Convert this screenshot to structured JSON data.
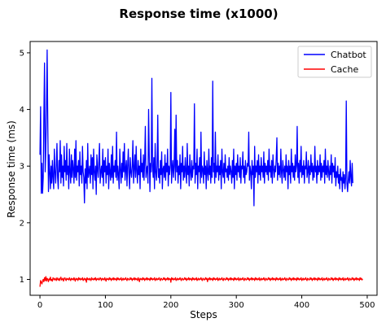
{
  "chart_data": {
    "type": "line",
    "title": "Response time (x1000)",
    "xlabel": "Steps",
    "ylabel": "Response time (ms)",
    "xlim": [
      -15,
      515
    ],
    "ylim": [
      0.72,
      5.2
    ],
    "xticks": [
      0,
      100,
      200,
      300,
      400,
      500
    ],
    "yticks": [
      1,
      2,
      3,
      4,
      5
    ],
    "grid": false,
    "legend_position": "upper right",
    "colors": {
      "Chatbot": "#0000ff",
      "Cache": "#ff0000"
    },
    "series": [
      {
        "name": "Chatbot",
        "x_start": 0,
        "x_step": 1,
        "values": [
          3.2,
          4.05,
          2.52,
          3.05,
          2.52,
          2.8,
          3.9,
          4.82,
          2.9,
          3.3,
          4.0,
          5.05,
          3.7,
          2.55,
          3.2,
          2.9,
          2.6,
          3.0,
          2.7,
          3.1,
          2.8,
          2.6,
          3.3,
          2.9,
          2.7,
          3.0,
          3.4,
          2.8,
          2.6,
          3.1,
          2.9,
          3.45,
          2.7,
          3.2,
          2.8,
          3.0,
          2.65,
          3.35,
          2.9,
          3.1,
          2.75,
          3.4,
          2.85,
          3.0,
          2.6,
          3.3,
          2.9,
          2.7,
          3.2,
          2.8,
          3.1,
          2.95,
          2.7,
          3.3,
          2.8,
          3.45,
          2.75,
          3.0,
          2.9,
          3.1,
          2.65,
          3.25,
          2.85,
          3.0,
          2.7,
          3.35,
          2.9,
          2.8,
          2.35,
          2.95,
          2.7,
          3.1,
          2.6,
          3.4,
          2.8,
          2.9,
          3.0,
          2.7,
          3.2,
          2.85,
          3.15,
          2.6,
          3.3,
          2.9,
          2.75,
          3.0,
          2.5,
          3.2,
          2.95,
          2.8,
          3.1,
          3.4,
          2.7,
          2.9,
          3.0,
          2.8,
          3.3,
          2.65,
          3.1,
          2.9,
          3.15,
          2.7,
          3.0,
          2.85,
          3.3,
          2.6,
          3.05,
          2.9,
          2.75,
          3.2,
          2.8,
          3.35,
          2.7,
          3.0,
          2.9,
          3.1,
          2.8,
          3.6,
          2.75,
          3.0,
          2.85,
          2.6,
          3.3,
          2.95,
          2.7,
          3.05,
          2.8,
          3.25,
          2.9,
          3.4,
          2.75,
          2.95,
          3.1,
          2.65,
          3.0,
          3.3,
          2.85,
          2.6,
          3.15,
          2.9,
          2.8,
          3.0,
          3.45,
          2.7,
          2.95,
          3.2,
          2.8,
          3.35,
          2.9,
          2.7,
          3.1,
          2.85,
          3.0,
          2.6,
          3.3,
          2.9,
          3.05,
          2.8,
          3.2,
          2.75,
          3.1,
          3.7,
          2.8,
          2.95,
          3.0,
          2.7,
          4.0,
          3.2,
          2.55,
          3.05,
          2.9,
          4.55,
          3.0,
          2.8,
          3.15,
          2.6,
          3.4,
          2.9,
          2.75,
          3.0,
          3.9,
          2.8,
          2.95,
          2.7,
          3.1,
          2.85,
          3.25,
          2.6,
          2.95,
          3.0,
          2.8,
          3.2,
          2.75,
          3.05,
          2.9,
          3.3,
          2.65,
          3.0,
          2.85,
          3.0,
          4.3,
          2.7,
          2.95,
          3.1,
          2.8,
          3.0,
          3.65,
          2.75,
          3.9,
          2.9,
          3.1,
          2.7,
          3.0,
          2.85,
          3.2,
          2.6,
          3.05,
          2.9,
          3.35,
          2.75,
          3.0,
          2.8,
          3.15,
          2.9,
          2.7,
          3.4,
          2.85,
          3.0,
          2.65,
          3.2,
          2.9,
          2.75,
          3.1,
          2.8,
          3.0,
          2.95,
          4.1,
          2.7,
          3.05,
          2.85,
          3.3,
          2.6,
          3.0,
          2.9,
          3.15,
          2.7,
          3.6,
          2.8,
          3.0,
          2.95,
          2.7,
          3.25,
          2.85,
          3.0,
          2.6,
          3.1,
          2.9,
          2.75,
          3.3,
          2.85,
          3.0,
          2.7,
          3.15,
          2.8,
          4.5,
          2.9,
          3.05,
          2.7,
          3.6,
          2.8,
          3.0,
          2.9,
          3.2,
          2.75,
          3.0,
          2.85,
          3.1,
          2.6,
          3.3,
          2.9,
          2.8,
          3.05,
          2.7,
          3.2,
          2.9,
          2.95,
          2.8,
          3.0,
          2.75,
          3.15,
          2.85,
          3.0,
          2.9,
          2.7,
          3.1,
          2.8,
          3.3,
          2.6,
          3.0,
          2.85,
          3.05,
          2.75,
          3.2,
          2.9,
          3.0,
          2.8,
          3.15,
          2.7,
          3.0,
          2.95,
          3.25,
          2.8,
          3.0,
          2.7,
          3.1,
          2.85,
          2.9,
          3.05,
          3.0,
          3.6,
          2.75,
          3.0,
          2.9,
          2.6,
          3.1,
          2.85,
          3.0,
          2.3,
          3.35,
          2.8,
          3.0,
          2.9,
          3.1,
          2.7,
          3.2,
          2.85,
          3.0,
          2.75,
          3.15,
          2.9,
          3.0,
          2.8,
          3.25,
          2.7,
          3.05,
          2.9,
          3.0,
          2.85,
          3.1,
          2.75,
          3.3,
          2.9,
          3.0,
          2.8,
          3.1,
          2.7,
          3.2,
          2.95,
          2.8,
          3.0,
          2.9,
          3.15,
          3.5,
          2.75,
          3.05,
          2.85,
          3.0,
          2.8,
          3.3,
          2.9,
          2.7,
          3.1,
          2.95,
          2.8,
          3.0,
          2.75,
          3.2,
          2.9,
          3.0,
          2.6,
          3.1,
          2.85,
          3.0,
          2.7,
          3.3,
          2.9,
          3.05,
          2.8,
          3.0,
          2.75,
          3.2,
          2.9,
          3.0,
          3.7,
          2.8,
          3.05,
          2.7,
          3.1,
          2.9,
          3.35,
          2.8,
          3.0,
          2.85,
          3.1,
          2.7,
          3.0,
          2.95,
          3.25,
          2.8,
          2.9,
          3.1,
          2.7,
          3.0,
          2.85,
          3.2,
          2.9,
          3.05,
          2.75,
          3.0,
          2.8,
          3.35,
          2.9,
          3.0,
          2.7,
          3.1,
          2.85,
          3.0,
          2.9,
          3.2,
          2.75,
          3.05,
          2.8,
          3.0,
          2.9,
          3.1,
          2.7,
          3.3,
          2.85,
          3.0,
          2.8,
          3.1,
          2.9,
          2.75,
          3.0,
          2.85,
          3.2,
          2.7,
          3.05,
          2.9,
          3.0,
          2.8,
          3.15,
          2.65,
          2.9,
          2.8,
          3.0,
          2.7,
          2.85,
          2.6,
          2.95,
          2.75,
          2.8,
          2.55,
          2.9,
          2.7,
          2.85,
          2.6,
          2.8,
          4.15,
          2.7,
          2.55,
          2.75,
          2.9,
          2.7,
          3.1,
          2.8,
          2.65,
          3.05,
          2.7
        ]
      },
      {
        "name": "Cache",
        "x_start": 0,
        "x_step": 1,
        "values": [
          0.87,
          0.98,
          0.95,
          0.92,
          0.97,
          1.0,
          0.96,
          1.03,
          0.98,
          1.05,
          0.97,
          1.02,
          1.0,
          0.96,
          1.01,
          0.99,
          1.04,
          0.98,
          1.0,
          0.97,
          1.03,
          1.01,
          0.99,
          1.02,
          1.0,
          0.98,
          1.03,
          1.0,
          0.99,
          1.02,
          0.98,
          1.01,
          1.04,
          0.99,
          1.0,
          1.02,
          0.97,
          1.01,
          1.03,
          1.0,
          0.98,
          1.02,
          1.0,
          1.01,
          0.99,
          1.03,
          1.0,
          0.98,
          1.02,
          1.0,
          1.01,
          0.99,
          1.03,
          1.0,
          0.97,
          1.02,
          1.0,
          1.01,
          0.98,
          1.03,
          1.0,
          1.02,
          0.99,
          1.01,
          1.0,
          1.03,
          0.98,
          1.0,
          1.02,
          0.99,
          1.01,
          0.95,
          1.03,
          1.0,
          1.01,
          0.99,
          1.02,
          1.0,
          0.98,
          1.03,
          1.0,
          1.01,
          0.99,
          1.02,
          1.0,
          1.03,
          0.98,
          1.01,
          1.0,
          1.02,
          0.99,
          1.0,
          1.03,
          1.01,
          0.98,
          1.02,
          1.0,
          1.01,
          0.99,
          1.03,
          1.0,
          0.97,
          1.02,
          1.0,
          1.01,
          0.99,
          1.03,
          1.0,
          1.02,
          0.98,
          1.01,
          1.0,
          1.03,
          0.99,
          1.02,
          1.0,
          1.01,
          0.98,
          1.03,
          1.0,
          1.02,
          0.99,
          1.01,
          1.0,
          1.03,
          0.98,
          1.0,
          1.02,
          0.99,
          1.01,
          1.0,
          1.03,
          1.0,
          0.98,
          1.02,
          1.01,
          0.99,
          1.0,
          1.03,
          1.0,
          1.02,
          0.98,
          1.01,
          1.0,
          1.03,
          0.99,
          1.02,
          1.0,
          1.01,
          0.98,
          1.03,
          1.0,
          0.96,
          1.02,
          1.0,
          1.01,
          0.99,
          1.03,
          1.0,
          1.02,
          0.98,
          1.01,
          1.0,
          1.03,
          0.99,
          1.02,
          1.0,
          1.01,
          0.98,
          1.03,
          1.0,
          1.02,
          0.99,
          1.01,
          1.0,
          1.03,
          0.98,
          1.0,
          1.02,
          0.99,
          1.01,
          1.0,
          1.03,
          1.0,
          0.98,
          1.02,
          1.01,
          0.99,
          1.0,
          1.03,
          1.0,
          1.02,
          0.98,
          1.01,
          1.0,
          1.03,
          0.99,
          1.02,
          1.0,
          1.01,
          0.95,
          1.03,
          1.0,
          1.02,
          0.99,
          1.01,
          1.0,
          1.03,
          0.98,
          1.0,
          1.02,
          0.99,
          1.01,
          1.0,
          1.03,
          1.0,
          0.98,
          1.02,
          1.01,
          0.99,
          1.0,
          1.03,
          1.0,
          1.02,
          0.98,
          1.01,
          1.0,
          1.03,
          0.99,
          1.02,
          1.0,
          1.01,
          0.98,
          1.03,
          1.0,
          1.02,
          0.99,
          1.01,
          1.0,
          1.03,
          0.98,
          1.0,
          1.02,
          0.99,
          1.01,
          1.0,
          1.03,
          1.0,
          0.98,
          1.02,
          1.01,
          0.99,
          1.0,
          1.03,
          1.0,
          1.02,
          0.96,
          1.01,
          1.0,
          1.03,
          0.99,
          1.02,
          1.0,
          1.01,
          0.98,
          1.03,
          1.0,
          1.02,
          0.99,
          1.01,
          1.0,
          1.03,
          0.98,
          1.0,
          1.02,
          0.99,
          1.01,
          1.0,
          1.03,
          1.0,
          0.98,
          1.02,
          1.01,
          0.99,
          1.0,
          1.03,
          1.0,
          1.02,
          0.98,
          1.01,
          1.0,
          1.03,
          0.99,
          1.02,
          1.0,
          1.01,
          0.98,
          1.03,
          1.0,
          1.02,
          0.99,
          1.01,
          1.0,
          1.03,
          0.98,
          1.0,
          1.02,
          0.99,
          1.01,
          1.0,
          1.03,
          1.0,
          0.98,
          1.02,
          1.01,
          0.99,
          1.0,
          1.03,
          1.0,
          1.02,
          0.98,
          1.01,
          1.0,
          1.03,
          0.99,
          1.02,
          1.0,
          1.01,
          0.98,
          1.03,
          1.0,
          1.02,
          0.99,
          1.01,
          1.0,
          1.03,
          0.98,
          1.0,
          1.02,
          0.99,
          1.01,
          1.0,
          1.03,
          1.0,
          0.98,
          1.02,
          1.01,
          0.99,
          1.0,
          1.03,
          1.0,
          1.02,
          0.98,
          1.01,
          1.0,
          1.03,
          0.99,
          1.02,
          1.0,
          1.01,
          0.98,
          1.03,
          1.0,
          1.02,
          0.99,
          1.01,
          1.0,
          1.03,
          0.98,
          1.0,
          1.02,
          0.99,
          1.01,
          1.0,
          1.03,
          1.0,
          0.98,
          1.02,
          1.01,
          0.99,
          1.0,
          1.03,
          1.0,
          1.02,
          0.98,
          1.01,
          1.0,
          1.03,
          0.99,
          1.02,
          1.0,
          1.01,
          0.98,
          1.03,
          1.0,
          1.02,
          0.99,
          1.01,
          1.0,
          1.03,
          0.98,
          1.0,
          1.02,
          0.99,
          1.01,
          1.0,
          1.03,
          1.0,
          0.98,
          1.02,
          1.01,
          0.99,
          1.0,
          1.03,
          1.0,
          1.02,
          0.98,
          1.01,
          1.0,
          1.03,
          0.99,
          1.02,
          1.0,
          1.01,
          0.98,
          1.03,
          1.0,
          1.02,
          0.99,
          1.01,
          1.0,
          1.03,
          0.98,
          1.0,
          1.02,
          0.99,
          1.01,
          1.0,
          1.03,
          1.0,
          0.98,
          1.02,
          1.01,
          0.99,
          1.0,
          1.03,
          1.0,
          1.02,
          0.98,
          1.01,
          1.0,
          1.03,
          0.99,
          1.02,
          1.0,
          1.01,
          0.98,
          1.03,
          1.0,
          1.02,
          0.99,
          1.01,
          1.0,
          1.03,
          0.98,
          1.0,
          1.02,
          0.99,
          1.01,
          1.0,
          1.03,
          1.0,
          0.98,
          1.02,
          1.01,
          0.99,
          1.0,
          1.03,
          1.0,
          1.02,
          0.98,
          1.01,
          1.0,
          1.03,
          0.99,
          1.02,
          1.0,
          1.01,
          0.98,
          1.03,
          1.0,
          1.02,
          0.99,
          1.01
        ]
      }
    ]
  }
}
